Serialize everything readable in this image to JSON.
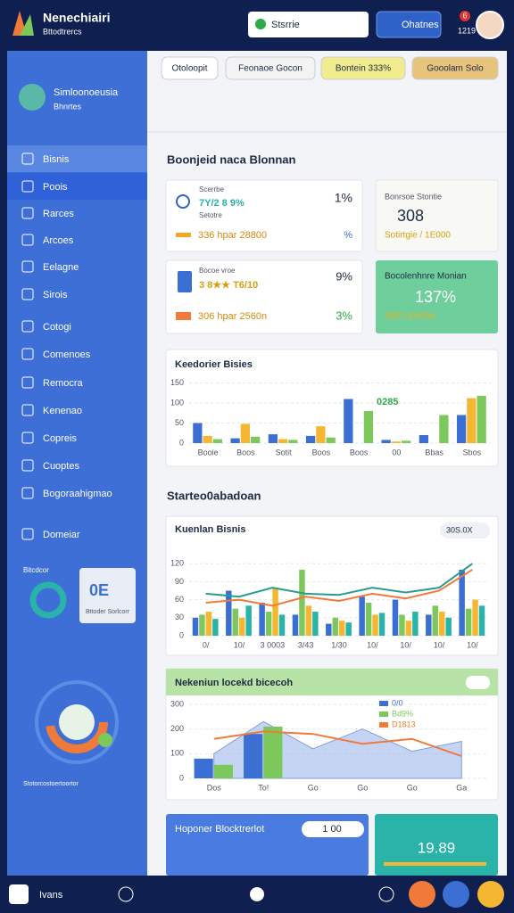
{
  "header": {
    "title": "Nenechiairi",
    "subtitle": "Bttodtrercs",
    "dropdown": "Stsrrie",
    "button": "Ohatnes",
    "badge": "6",
    "user_code": "1219"
  },
  "sidebar": {
    "profile_name": "Simloonoeusia",
    "profile_role": "Bhnrtes",
    "nav": [
      "Bisnis",
      "Poois",
      "Rarces",
      "Arcoes",
      "Eelagne",
      "Sirois",
      "Cotogi",
      "Comenoes",
      "Remocra",
      "Kenenao",
      "Copreis",
      "Cuoptes",
      "Bogoraahigmao",
      "Domeiar"
    ],
    "widget_label": "Bitcdcor",
    "widget_value": "0E",
    "widget_caption": "Bttoder Sorlcorr",
    "ring_caption": "Stotorcostoertoortor"
  },
  "toolbar": {
    "chips": [
      "Otoloopit",
      "Feonaoe Gocon",
      "Bontein 333%",
      "Gooolam Solo"
    ]
  },
  "section1": {
    "title": "Boonjeid naca Blonnan"
  },
  "cards": [
    {
      "label": "Scerrbe",
      "value": "7Y/2 8 9%",
      "sub": "Setotre",
      "footer": "336 hpar 28800",
      "right": "1%",
      "right2": "%"
    },
    {
      "label": "Bonrsoe Stontie",
      "value": "308",
      "footer": "Sotirtgie / 1E000"
    },
    {
      "label": "Bocoe vroe",
      "value": "3 8★★ T6/10",
      "footer": "306 hpar 2560n",
      "right": "9%",
      "right2": "3%"
    },
    {
      "label": "Bocolenhnre Monian",
      "value": "137%",
      "footer": "S0E1 E0090"
    }
  ],
  "section2": {
    "title": "Starteo0abadoan"
  },
  "charts": [
    {
      "type": "bar",
      "title": "Keedorier Bisies",
      "annotation": "0285",
      "grid": true,
      "categories": [
        "Booie",
        "Boos",
        "Sotit",
        "Boos",
        "Boos",
        "00",
        "Bbas",
        "Sbos"
      ],
      "ylim": [
        0,
        160
      ],
      "yticks": [
        0,
        50,
        100,
        150
      ],
      "series": [
        {
          "type": "bar",
          "color": "#3b6fd4",
          "values": [
            50,
            12,
            22,
            18,
            110,
            8,
            20,
            70
          ]
        },
        {
          "type": "bar",
          "color": "#f5b731",
          "values": [
            18,
            48,
            10,
            42,
            null,
            4,
            null,
            112
          ]
        },
        {
          "type": "bar",
          "color": "#7cc85a",
          "values": [
            10,
            16,
            8,
            14,
            80,
            6,
            70,
            118
          ]
        }
      ]
    },
    {
      "type": "combo",
      "title": "Kuenlan Bisnis",
      "badge": "30S.0X",
      "grid": true,
      "categories": [
        "0/",
        "10/",
        "3 0003",
        "3/43",
        "1/30",
        "10/",
        "10/",
        "10/",
        "10/"
      ],
      "ylim": [
        0,
        150
      ],
      "yticks": [
        0,
        30,
        60,
        90,
        120
      ],
      "series": [
        {
          "type": "bar",
          "color": "#3b6fd4",
          "values": [
            30,
            75,
            55,
            35,
            20,
            65,
            60,
            35,
            110
          ]
        },
        {
          "type": "bar",
          "color": "#7cc85a",
          "values": [
            35,
            45,
            40,
            110,
            30,
            55,
            35,
            50,
            45
          ]
        },
        {
          "type": "bar",
          "color": "#f5b731",
          "values": [
            40,
            30,
            80,
            50,
            25,
            35,
            25,
            40,
            60
          ]
        },
        {
          "type": "bar",
          "color": "#2ab3a8",
          "values": [
            28,
            50,
            35,
            40,
            22,
            38,
            40,
            30,
            50
          ]
        },
        {
          "type": "line",
          "color": "#2a9c8f",
          "values": [
            70,
            65,
            80,
            70,
            68,
            80,
            72,
            80,
            120
          ]
        },
        {
          "type": "line",
          "color": "#f07a3a",
          "values": [
            55,
            60,
            50,
            65,
            58,
            70,
            62,
            75,
            110
          ]
        }
      ]
    },
    {
      "type": "combo",
      "title": "Nekeniun locekd bicecoh",
      "grid": true,
      "categories": [
        "Dos",
        "To!",
        "Go",
        "Go",
        "Go",
        "Ga"
      ],
      "ylim": [
        0,
        300
      ],
      "yticks": [
        0,
        100,
        200,
        300
      ],
      "series": [
        {
          "type": "area",
          "color": "#9fb8ea",
          "values": [
            100,
            230,
            120,
            200,
            110,
            150
          ]
        },
        {
          "type": "bar",
          "name": "0/0",
          "color": "#3b6fd4",
          "values": [
            80,
            180,
            null,
            null,
            null,
            null
          ]
        },
        {
          "type": "bar",
          "name": "Bd9%",
          "color": "#7cc85a",
          "values": [
            55,
            210,
            null,
            null,
            null,
            null
          ]
        },
        {
          "type": "line",
          "name": "D1813",
          "color": "#f07a3a",
          "values": [
            160,
            190,
            180,
            140,
            160,
            90
          ]
        }
      ]
    }
  ],
  "bottom_cards": [
    {
      "title": "Hoponer Blocktrerlot",
      "value": "1 00"
    },
    {
      "value": "19.89"
    }
  ],
  "footer": {
    "label": "Ivans"
  }
}
